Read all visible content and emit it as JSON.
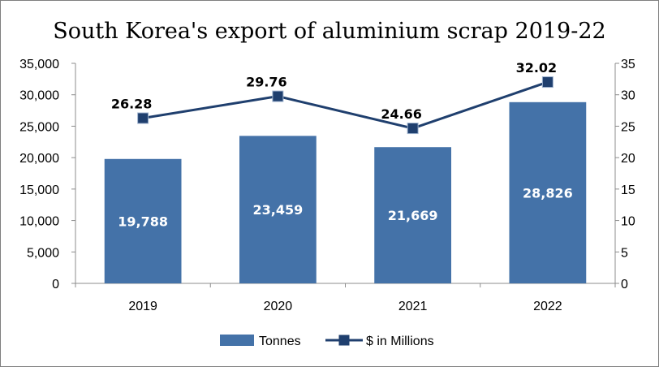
{
  "chart_data": {
    "type": "bar",
    "title": "South Korea's export of aluminium scrap 2019-22",
    "categories": [
      "2019",
      "2020",
      "2021",
      "2022"
    ],
    "series": [
      {
        "name": "Tonnes",
        "type": "bar",
        "axis": "left",
        "values": [
          19788,
          23459,
          21669,
          28826
        ],
        "labels": [
          "19,788",
          "23,459",
          "21,669",
          "28,826"
        ],
        "color": "#4472a8"
      },
      {
        "name": "$ in Millions",
        "type": "line",
        "axis": "right",
        "values": [
          26.28,
          29.76,
          24.66,
          32.02
        ],
        "labels": [
          "26.28",
          "29.76",
          "24.66",
          "32.02"
        ],
        "color": "#1f3f6e"
      }
    ],
    "y_left": {
      "min": 0,
      "max": 35000,
      "ticks": [
        "0",
        "5,000",
        "10,000",
        "15,000",
        "20,000",
        "25,000",
        "30,000",
        "35,000"
      ]
    },
    "y_right": {
      "min": 0,
      "max": 35,
      "ticks": [
        "0",
        "5",
        "10",
        "15",
        "20",
        "25",
        "30",
        "35"
      ]
    },
    "grid": false,
    "legend_position": "bottom"
  }
}
